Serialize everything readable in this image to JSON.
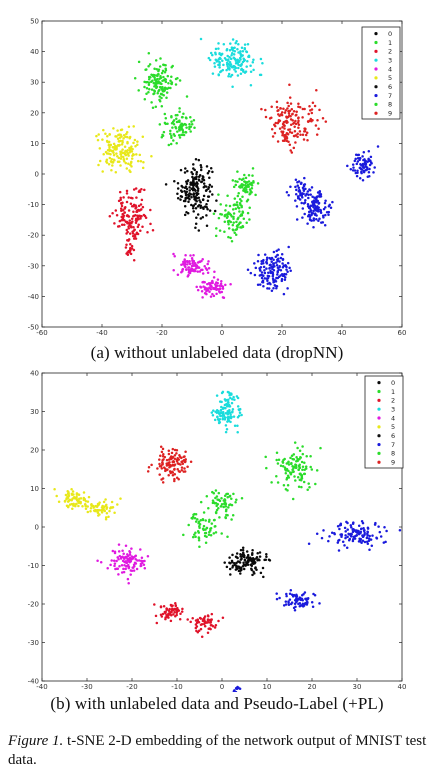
{
  "captions": {
    "a": "(a) without unlabeled data (dropNN)",
    "b": "(b) with unlabeled data and Pseudo-Label (+PL)",
    "figure_label": "Figure 1.",
    "figure_text": "t-SNE 2-D embedding of the network output of MNIST test data."
  },
  "chart_data": [
    {
      "type": "scatter",
      "title": "",
      "xlabel": "",
      "ylabel": "",
      "xlim": [
        -60,
        60
      ],
      "ylim": [
        -50,
        50
      ],
      "xticks": [
        -60,
        -40,
        -20,
        0,
        20,
        40,
        60
      ],
      "yticks": [
        -50,
        -40,
        -30,
        -20,
        -10,
        0,
        10,
        20,
        30,
        40,
        50
      ],
      "grid": false,
      "legend_position": "top-right",
      "series": [
        {
          "name": "0",
          "color": "#0a0a0a",
          "clusters": [
            {
              "cx": -9,
              "cy": -5,
              "rx": 5,
              "ry": 8,
              "n": 180
            }
          ]
        },
        {
          "name": "1",
          "color": "#2bdc2b",
          "clusters": [
            {
              "cx": 4,
              "cy": -14,
              "rx": 5,
              "ry": 6,
              "n": 90
            },
            {
              "cx": 8,
              "cy": -4,
              "rx": 4,
              "ry": 4,
              "n": 60
            }
          ]
        },
        {
          "name": "2",
          "color": "#e0132a",
          "clusters": [
            {
              "cx": -30,
              "cy": -14,
              "rx": 5,
              "ry": 8,
              "n": 150
            },
            {
              "cx": -31,
              "cy": -25,
              "rx": 1.2,
              "ry": 1.2,
              "n": 12
            }
          ]
        },
        {
          "name": "3",
          "color": "#1adcdc",
          "clusters": [
            {
              "cx": 4,
              "cy": 37,
              "rx": 7,
              "ry": 6,
              "n": 150
            }
          ]
        },
        {
          "name": "4",
          "color": "#e01ae0",
          "clusters": [
            {
              "cx": -10,
              "cy": -30,
              "rx": 5,
              "ry": 3,
              "n": 90
            },
            {
              "cx": -3,
              "cy": -37,
              "rx": 4,
              "ry": 3,
              "n": 70
            }
          ]
        },
        {
          "name": "5",
          "color": "#e8e81a",
          "clusters": [
            {
              "cx": -34,
              "cy": 8,
              "rx": 6,
              "ry": 7,
              "n": 160
            }
          ]
        },
        {
          "name": "6",
          "color": "#111111",
          "clusters": []
        },
        {
          "name": "7",
          "color": "#1a1adc",
          "clusters": [
            {
              "cx": 17,
              "cy": -32,
              "rx": 6,
              "ry": 6,
              "n": 140
            },
            {
              "cx": 31,
              "cy": -11,
              "rx": 4,
              "ry": 5,
              "n": 110
            },
            {
              "cx": 26,
              "cy": -5,
              "rx": 3,
              "ry": 3,
              "n": 40
            },
            {
              "cx": 47,
              "cy": 3,
              "rx": 4,
              "ry": 4,
              "n": 70
            }
          ]
        },
        {
          "name": "8",
          "color": "#2bdc2b",
          "clusters": [
            {
              "cx": -21,
              "cy": 30,
              "rx": 5,
              "ry": 6,
              "n": 130
            },
            {
              "cx": -15,
              "cy": 16,
              "rx": 5,
              "ry": 4,
              "n": 80
            }
          ]
        },
        {
          "name": "9",
          "color": "#dd2222",
          "clusters": [
            {
              "cx": 24,
              "cy": 17,
              "rx": 7,
              "ry": 7,
              "n": 150
            }
          ]
        }
      ]
    },
    {
      "type": "scatter",
      "title": "",
      "xlabel": "",
      "ylabel": "",
      "xlim": [
        -40,
        40
      ],
      "ylim": [
        -40,
        40
      ],
      "xticks": [
        -40,
        -30,
        -20,
        -10,
        0,
        10,
        20,
        30,
        40
      ],
      "yticks": [
        -40,
        -30,
        -20,
        -10,
        0,
        10,
        20,
        30,
        40
      ],
      "grid": false,
      "legend_position": "top-right",
      "series": [
        {
          "name": "0",
          "color": "#0a0a0a",
          "clusters": [
            {
              "cx": 5,
              "cy": -9,
              "rx": 4,
              "ry": 3,
              "n": 120
            }
          ]
        },
        {
          "name": "1",
          "color": "#2bdc2b",
          "clusters": [
            {
              "cx": -4,
              "cy": 0,
              "rx": 3,
              "ry": 3,
              "n": 60
            },
            {
              "cx": 0,
              "cy": 6,
              "rx": 3,
              "ry": 3,
              "n": 60
            }
          ]
        },
        {
          "name": "2",
          "color": "#e0132a",
          "clusters": [
            {
              "cx": -12,
              "cy": -22,
              "rx": 3,
              "ry": 2,
              "n": 60
            },
            {
              "cx": -4,
              "cy": -25,
              "rx": 3,
              "ry": 2,
              "n": 60
            }
          ]
        },
        {
          "name": "3",
          "color": "#1adcdc",
          "clusters": [
            {
              "cx": 1,
              "cy": 30,
              "rx": 2.5,
              "ry": 4,
              "n": 110
            }
          ]
        },
        {
          "name": "4",
          "color": "#e01ae0",
          "clusters": [
            {
              "cx": -21,
              "cy": -9,
              "rx": 4,
              "ry": 3,
              "n": 100
            }
          ]
        },
        {
          "name": "5",
          "color": "#e8e81a",
          "clusters": [
            {
              "cx": -33,
              "cy": 7,
              "rx": 3,
              "ry": 2,
              "n": 70
            },
            {
              "cx": -27,
              "cy": 5,
              "rx": 3,
              "ry": 2,
              "n": 60
            }
          ]
        },
        {
          "name": "6",
          "color": "#111111",
          "clusters": []
        },
        {
          "name": "7",
          "color": "#1a1adc",
          "clusters": [
            {
              "cx": 30,
              "cy": -2,
              "rx": 6,
              "ry": 3,
              "n": 120
            },
            {
              "cx": 17,
              "cy": -19,
              "rx": 4,
              "ry": 2,
              "n": 70
            },
            {
              "cx": 3,
              "cy": -43,
              "rx": 1,
              "ry": 2,
              "n": 20
            }
          ]
        },
        {
          "name": "8",
          "color": "#2bdc2b",
          "clusters": [
            {
              "cx": 16,
              "cy": 15,
              "rx": 4,
              "ry": 5,
              "n": 110
            }
          ]
        },
        {
          "name": "9",
          "color": "#dd2222",
          "clusters": [
            {
              "cx": -11,
              "cy": 16,
              "rx": 4,
              "ry": 4,
              "n": 110
            }
          ]
        }
      ]
    }
  ]
}
